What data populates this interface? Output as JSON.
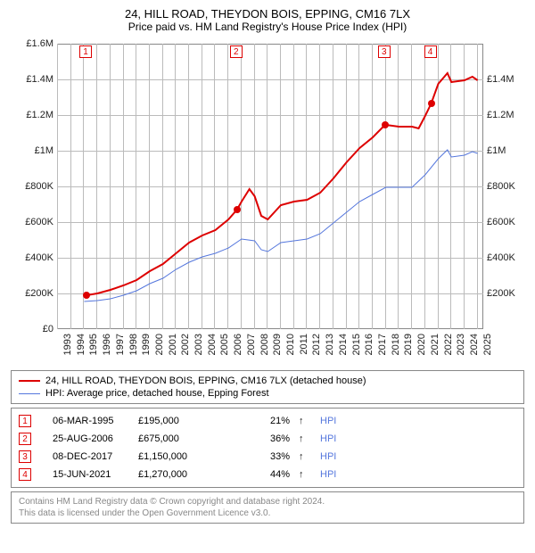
{
  "title_line1": "24, HILL ROAD, THEYDON BOIS, EPPING, CM16 7LX",
  "title_line2": "Price paid vs. HM Land Registry's House Price Index (HPI)",
  "chart": {
    "type": "line",
    "background_color": "#ffffff",
    "grid_color": "#bbbbbb",
    "border_color": "#888888",
    "title_fontsize": 12,
    "label_fontsize": 11,
    "x_years": [
      1993,
      1994,
      1995,
      1996,
      1997,
      1998,
      1999,
      2000,
      2001,
      2002,
      2003,
      2004,
      2005,
      2006,
      2007,
      2008,
      2009,
      2010,
      2011,
      2012,
      2013,
      2014,
      2015,
      2016,
      2017,
      2018,
      2019,
      2020,
      2021,
      2022,
      2023,
      2024,
      2025
    ],
    "x_range": [
      1993,
      2025.5
    ],
    "y_left": {
      "min": 0,
      "max": 1600000,
      "ticks": [
        "£0",
        "£200K",
        "£400K",
        "£600K",
        "£800K",
        "£1M",
        "£1.2M",
        "£1.4M",
        "£1.6M"
      ]
    },
    "y_right": {
      "min": 0,
      "max": 1600000,
      "ticks": [
        "£200K",
        "£400K",
        "£600K",
        "£800K",
        "£1M",
        "£1.2M",
        "£1.4M"
      ]
    },
    "series": [
      {
        "name": "24, HILL ROAD, THEYDON BOIS, EPPING, CM16 7LX (detached house)",
        "color": "#dd0000",
        "line_width": 2,
        "data": [
          [
            1995.18,
            195000
          ],
          [
            1996,
            205000
          ],
          [
            1997,
            225000
          ],
          [
            1998,
            250000
          ],
          [
            1999,
            280000
          ],
          [
            2000,
            330000
          ],
          [
            2001,
            370000
          ],
          [
            2002,
            430000
          ],
          [
            2003,
            490000
          ],
          [
            2004,
            530000
          ],
          [
            2005,
            560000
          ],
          [
            2006,
            620000
          ],
          [
            2006.65,
            675000
          ],
          [
            2007,
            720000
          ],
          [
            2007.6,
            790000
          ],
          [
            2008,
            750000
          ],
          [
            2008.5,
            640000
          ],
          [
            2009,
            620000
          ],
          [
            2010,
            700000
          ],
          [
            2011,
            720000
          ],
          [
            2012,
            730000
          ],
          [
            2013,
            770000
          ],
          [
            2014,
            850000
          ],
          [
            2015,
            940000
          ],
          [
            2016,
            1020000
          ],
          [
            2017,
            1080000
          ],
          [
            2017.94,
            1150000
          ],
          [
            2018,
            1150000
          ],
          [
            2019,
            1140000
          ],
          [
            2020,
            1140000
          ],
          [
            2020.5,
            1130000
          ],
          [
            2021,
            1200000
          ],
          [
            2021.46,
            1270000
          ],
          [
            2022,
            1380000
          ],
          [
            2022.7,
            1440000
          ],
          [
            2023,
            1390000
          ],
          [
            2024,
            1400000
          ],
          [
            2024.6,
            1420000
          ],
          [
            2025,
            1400000
          ]
        ]
      },
      {
        "name": "HPI: Average price, detached house, Epping Forest",
        "color": "#5577dd",
        "line_width": 1,
        "data": [
          [
            1995,
            160000
          ],
          [
            1996,
            165000
          ],
          [
            1997,
            175000
          ],
          [
            1998,
            195000
          ],
          [
            1999,
            220000
          ],
          [
            2000,
            260000
          ],
          [
            2001,
            290000
          ],
          [
            2002,
            340000
          ],
          [
            2003,
            380000
          ],
          [
            2004,
            410000
          ],
          [
            2005,
            430000
          ],
          [
            2006,
            460000
          ],
          [
            2007,
            510000
          ],
          [
            2008,
            500000
          ],
          [
            2008.5,
            450000
          ],
          [
            2009,
            440000
          ],
          [
            2010,
            490000
          ],
          [
            2011,
            500000
          ],
          [
            2012,
            510000
          ],
          [
            2013,
            540000
          ],
          [
            2014,
            600000
          ],
          [
            2015,
            660000
          ],
          [
            2016,
            720000
          ],
          [
            2017,
            760000
          ],
          [
            2018,
            800000
          ],
          [
            2019,
            800000
          ],
          [
            2020,
            800000
          ],
          [
            2021,
            870000
          ],
          [
            2022,
            960000
          ],
          [
            2022.7,
            1010000
          ],
          [
            2023,
            970000
          ],
          [
            2024,
            980000
          ],
          [
            2024.6,
            1000000
          ],
          [
            2025,
            990000
          ]
        ]
      }
    ],
    "markers": [
      {
        "idx": "1",
        "x": 1995.18,
        "y": 195000
      },
      {
        "idx": "2",
        "x": 2006.65,
        "y": 675000
      },
      {
        "idx": "3",
        "x": 2017.94,
        "y": 1150000
      },
      {
        "idx": "4",
        "x": 2021.46,
        "y": 1270000
      }
    ]
  },
  "legend": [
    {
      "color": "#dd0000",
      "width": 2,
      "label": "24, HILL ROAD, THEYDON BOIS, EPPING, CM16 7LX (detached house)"
    },
    {
      "color": "#5577dd",
      "width": 1,
      "label": "HPI: Average price, detached house, Epping Forest"
    }
  ],
  "transactions": [
    {
      "idx": "1",
      "date": "06-MAR-1995",
      "price": "£195,000",
      "pct": "21%",
      "arrow": "↑",
      "suffix": "HPI"
    },
    {
      "idx": "2",
      "date": "25-AUG-2006",
      "price": "£675,000",
      "pct": "36%",
      "arrow": "↑",
      "suffix": "HPI"
    },
    {
      "idx": "3",
      "date": "08-DEC-2017",
      "price": "£1,150,000",
      "pct": "33%",
      "arrow": "↑",
      "suffix": "HPI"
    },
    {
      "idx": "4",
      "date": "15-JUN-2021",
      "price": "£1,270,000",
      "pct": "44%",
      "arrow": "↑",
      "suffix": "HPI"
    }
  ],
  "attribution_line1": "Contains HM Land Registry data © Crown copyright and database right 2024.",
  "attribution_line2": "This data is licensed under the Open Government Licence v3.0."
}
